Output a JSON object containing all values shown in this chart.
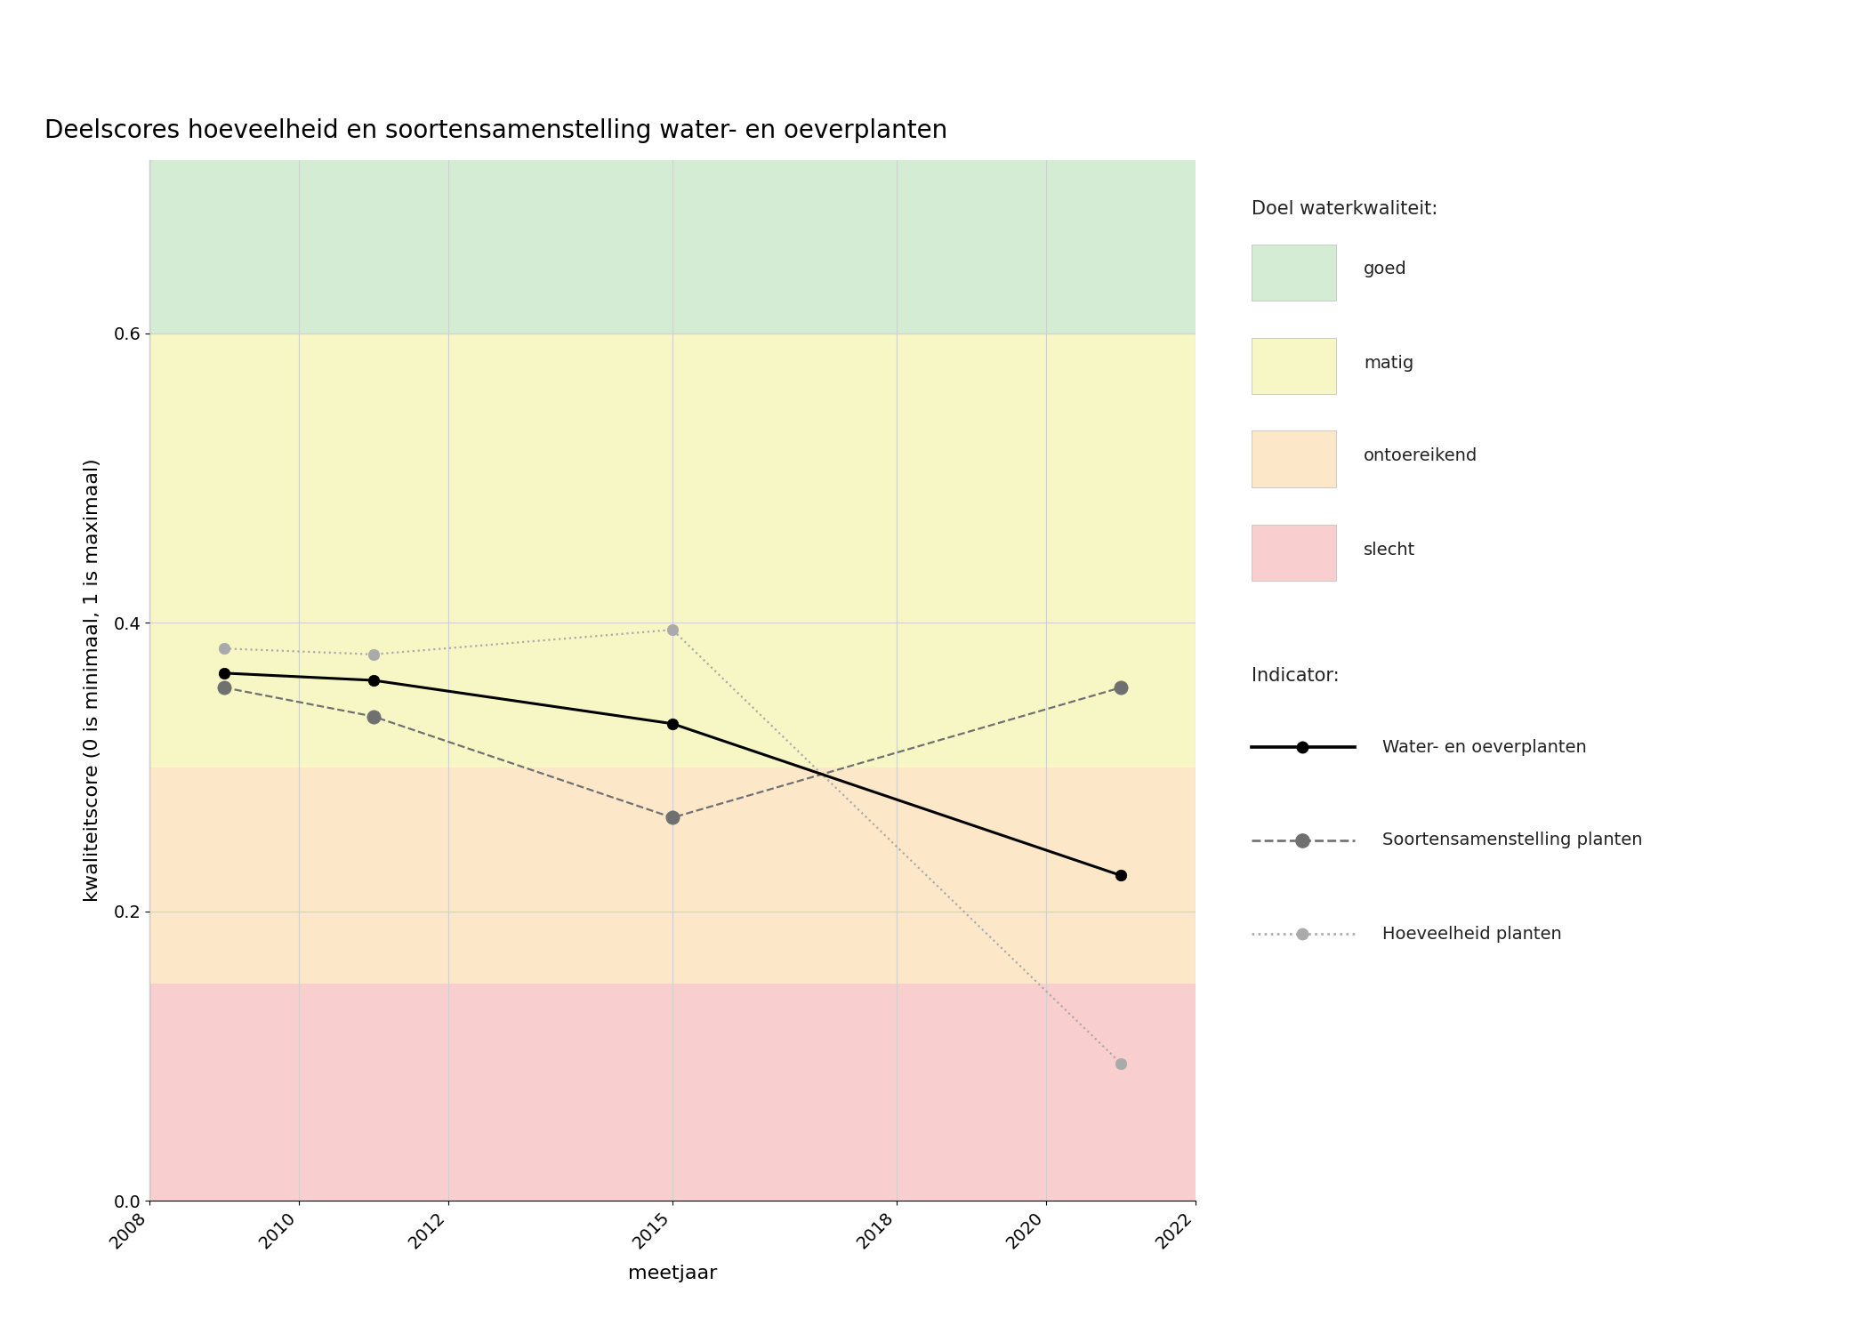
{
  "title": "Deelscores hoeveelheid en soortensamenstelling water- en oeverplanten",
  "xlabel": "meetjaar",
  "ylabel": "kwaliteitscore (0 is minimaal, 1 is maximaal)",
  "xlim": [
    2008,
    2022
  ],
  "ylim": [
    0.0,
    0.72
  ],
  "xticks": [
    2008,
    2010,
    2012,
    2015,
    2018,
    2020,
    2022
  ],
  "yticks": [
    0.0,
    0.2,
    0.4,
    0.6
  ],
  "background_color": "#ffffff",
  "bands": [
    {
      "ymin": 0.6,
      "ymax": 0.72,
      "color": "#d5ecd4",
      "label": "goed"
    },
    {
      "ymin": 0.3,
      "ymax": 0.6,
      "color": "#f7f7c6",
      "label": "matig"
    },
    {
      "ymin": 0.15,
      "ymax": 0.3,
      "color": "#fce8c8",
      "label": "ontoereikend"
    },
    {
      "ymin": 0.0,
      "ymax": 0.15,
      "color": "#f9cece",
      "label": "slecht"
    }
  ],
  "water_oever": {
    "years": [
      2009,
      2011,
      2015,
      2021
    ],
    "values": [
      0.365,
      0.36,
      0.33,
      0.225
    ],
    "color": "#000000",
    "linestyle": "-",
    "linewidth": 2.2,
    "marker": "o",
    "markersize": 9,
    "label": "Water- en oeverplanten",
    "zorder": 5
  },
  "soortensamenstelling": {
    "years": [
      2009,
      2011,
      2015,
      2021
    ],
    "values": [
      0.355,
      0.335,
      0.265,
      0.355
    ],
    "color": "#707070",
    "linestyle": "--",
    "linewidth": 1.6,
    "marker": "o",
    "markersize": 11,
    "label": "Soortensamenstelling planten",
    "zorder": 4
  },
  "hoeveelheid": {
    "years": [
      2009,
      2011,
      2015,
      2021
    ],
    "values": [
      0.382,
      0.378,
      0.395,
      0.095
    ],
    "color": "#aaaaaa",
    "linestyle": ":",
    "linewidth": 1.6,
    "marker": "o",
    "markersize": 9,
    "label": "Hoeveelheid planten",
    "zorder": 3
  },
  "grid_color": "#d0d0d0",
  "title_fontsize": 20,
  "axis_label_fontsize": 16,
  "tick_fontsize": 14,
  "legend_title_fontsize": 15,
  "legend_fontsize": 14
}
